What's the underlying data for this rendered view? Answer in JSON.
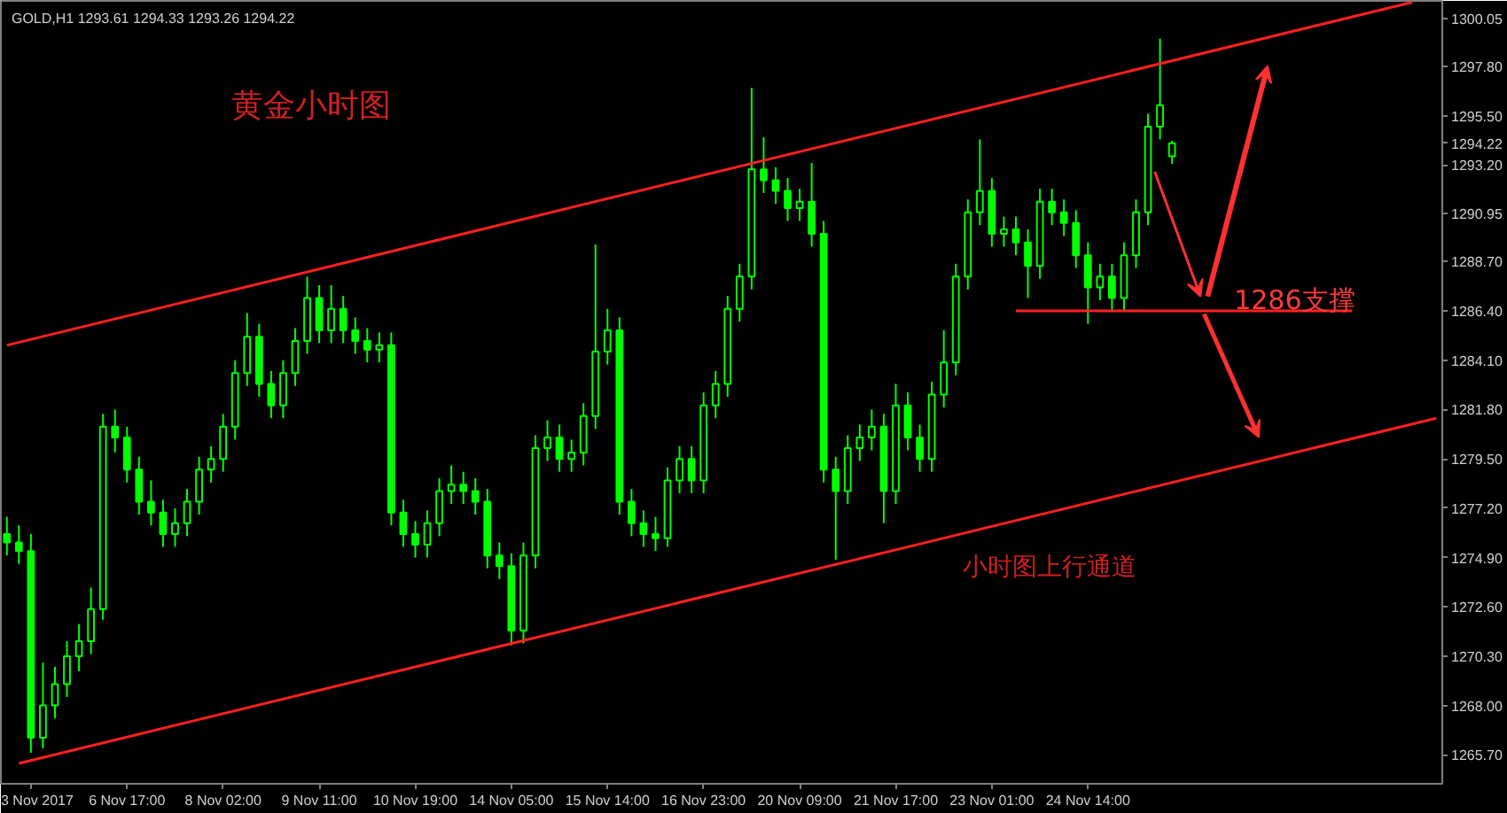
{
  "chart_data": {
    "type": "candlestick",
    "title": "GOLD,H1  1293.61 1294.33 1293.26 1294.22",
    "annotations": [
      "黄金小时图",
      "1286支撑",
      "小时图上行通道"
    ],
    "categories": [
      null,
      null,
      "3 Nov 2017",
      null,
      null,
      null,
      null,
      null,
      null,
      null,
      "6 Nov 17:00",
      null,
      null,
      null,
      null,
      null,
      null,
      null,
      "8 Nov 02:00",
      null,
      null,
      null,
      null,
      null,
      null,
      null,
      "9 Nov 11:00",
      null,
      null,
      null,
      null,
      null,
      null,
      null,
      "10 Nov 19:00",
      null,
      null,
      null,
      null,
      null,
      null,
      null,
      "14 Nov 05:00",
      null,
      null,
      null,
      null,
      null,
      null,
      null,
      "15 Nov 14:00",
      null,
      null,
      null,
      null,
      null,
      null,
      null,
      "16 Nov 23:00",
      null,
      null,
      null,
      null,
      null,
      null,
      null,
      "20 Nov 09:00",
      null,
      null,
      null,
      null,
      null,
      null,
      null,
      "21 Nov 17:00",
      null,
      null,
      null,
      null,
      null,
      null,
      null,
      "23 Nov 01:00",
      null,
      null,
      null,
      null,
      null,
      null,
      null,
      "24 Nov 14:00",
      null,
      null,
      null,
      null,
      null,
      null,
      null,
      null,
      null,
      null,
      null,
      null,
      null,
      null,
      null,
      null,
      null,
      null,
      null,
      null,
      null,
      null,
      null,
      null,
      null,
      null,
      null,
      null,
      null
    ],
    "ylim": [
      1264.35,
      1300.86
    ],
    "yticks": [
      {
        "value": 1265.7,
        "label": "1265.70"
      },
      {
        "value": 1268.0,
        "label": "1268.00"
      },
      {
        "value": 1270.3,
        "label": "1270.30"
      },
      {
        "value": 1272.6,
        "label": "1272.60"
      },
      {
        "value": 1274.9,
        "label": "1274.90"
      },
      {
        "value": 1277.2,
        "label": "1277.20"
      },
      {
        "value": 1279.5,
        "label": "1279.50"
      },
      {
        "value": 1281.8,
        "label": "1281.80"
      },
      {
        "value": 1284.1,
        "label": "1284.10"
      },
      {
        "value": 1286.4,
        "label": "1286.40"
      },
      {
        "value": 1288.7,
        "label": "1288.70"
      },
      {
        "value": 1290.95,
        "label": "1290.95"
      },
      {
        "value": 1293.2,
        "label": "1293.20"
      },
      1294.22,
      {
        "value": 1295.5,
        "label": "1295.50"
      },
      {
        "value": 1297.8,
        "label": "1297.80"
      },
      {
        "value": 1300.05,
        "label": "1300.05"
      }
    ],
    "series": [
      {
        "color": "#00ff00",
        "ohlc": [
          [
            1276.0,
            1276.8,
            1275.0,
            1275.6
          ],
          [
            1275.6,
            1276.4,
            1274.6,
            1275.2
          ],
          [
            1275.2,
            1276.0,
            1265.8,
            1266.5
          ],
          [
            1266.5,
            1270.0,
            1266.0,
            1268.0
          ],
          [
            1268.0,
            1269.8,
            1267.4,
            1269.0
          ],
          [
            1269.0,
            1271.0,
            1268.4,
            1270.3
          ],
          [
            1270.3,
            1271.8,
            1269.6,
            1271.0
          ],
          [
            1271.0,
            1273.5,
            1270.4,
            1272.5
          ],
          [
            1272.5,
            1281.6,
            1272.0,
            1281.0
          ],
          [
            1281.0,
            1281.8,
            1279.8,
            1280.5
          ],
          [
            1280.5,
            1281.0,
            1278.4,
            1279.0
          ],
          [
            1279.0,
            1279.6,
            1276.9,
            1277.5
          ],
          [
            1277.5,
            1278.5,
            1276.4,
            1277.0
          ],
          [
            1277.0,
            1277.6,
            1275.4,
            1276.0
          ],
          [
            1276.0,
            1277.2,
            1275.4,
            1276.5
          ],
          [
            1276.5,
            1278.1,
            1275.9,
            1277.5
          ],
          [
            1277.5,
            1279.6,
            1276.9,
            1279.0
          ],
          [
            1279.0,
            1280.1,
            1278.4,
            1279.5
          ],
          [
            1279.5,
            1281.6,
            1278.9,
            1281.0
          ],
          [
            1281.0,
            1284.1,
            1280.4,
            1283.5
          ],
          [
            1283.5,
            1286.3,
            1282.9,
            1285.2
          ],
          [
            1285.2,
            1285.8,
            1282.4,
            1283.0
          ],
          [
            1283.0,
            1283.6,
            1281.4,
            1282.0
          ],
          [
            1282.0,
            1284.1,
            1281.4,
            1283.5
          ],
          [
            1283.5,
            1285.6,
            1282.9,
            1285.0
          ],
          [
            1285.0,
            1288.0,
            1284.4,
            1287.0
          ],
          [
            1287.0,
            1287.6,
            1284.9,
            1285.5
          ],
          [
            1285.5,
            1287.6,
            1284.9,
            1286.5
          ],
          [
            1286.5,
            1287.1,
            1284.9,
            1285.5
          ],
          [
            1285.5,
            1286.1,
            1284.4,
            1285.0
          ],
          [
            1285.0,
            1285.6,
            1284.0,
            1284.6
          ],
          [
            1284.6,
            1285.4,
            1284.0,
            1284.8
          ],
          [
            1284.8,
            1285.4,
            1276.4,
            1277.0
          ],
          [
            1277.0,
            1277.6,
            1275.4,
            1276.0
          ],
          [
            1276.0,
            1276.6,
            1274.9,
            1275.5
          ],
          [
            1275.5,
            1277.1,
            1274.9,
            1276.5
          ],
          [
            1276.5,
            1278.6,
            1275.9,
            1278.0
          ],
          [
            1278.0,
            1279.2,
            1277.4,
            1278.3
          ],
          [
            1278.3,
            1278.9,
            1277.4,
            1278.0
          ],
          [
            1278.0,
            1278.6,
            1276.9,
            1277.5
          ],
          [
            1277.5,
            1278.1,
            1274.4,
            1275.0
          ],
          [
            1275.0,
            1275.6,
            1273.9,
            1274.5
          ],
          [
            1274.5,
            1275.1,
            1270.8,
            1271.5
          ],
          [
            1271.5,
            1275.6,
            1270.9,
            1275.0
          ],
          [
            1275.0,
            1280.6,
            1274.4,
            1280.0
          ],
          [
            1280.0,
            1281.3,
            1279.4,
            1280.5
          ],
          [
            1280.5,
            1281.1,
            1278.9,
            1279.5
          ],
          [
            1279.5,
            1280.4,
            1278.9,
            1279.8
          ],
          [
            1279.8,
            1282.1,
            1279.2,
            1281.5
          ],
          [
            1281.5,
            1289.5,
            1280.9,
            1284.5
          ],
          [
            1284.5,
            1286.5,
            1283.9,
            1285.5
          ],
          [
            1285.5,
            1286.1,
            1276.9,
            1277.5
          ],
          [
            1277.5,
            1278.1,
            1275.9,
            1276.5
          ],
          [
            1276.5,
            1277.1,
            1275.4,
            1276.0
          ],
          [
            1276.0,
            1276.8,
            1275.2,
            1275.8
          ],
          [
            1275.8,
            1279.1,
            1275.4,
            1278.5
          ],
          [
            1278.5,
            1280.1,
            1277.9,
            1279.5
          ],
          [
            1279.5,
            1280.1,
            1277.9,
            1278.5
          ],
          [
            1278.5,
            1282.6,
            1277.9,
            1282.0
          ],
          [
            1282.0,
            1283.6,
            1281.4,
            1283.0
          ],
          [
            1283.0,
            1287.1,
            1282.4,
            1286.5
          ],
          [
            1286.5,
            1288.6,
            1285.9,
            1288.0
          ],
          [
            1288.0,
            1296.8,
            1287.4,
            1293.0
          ],
          [
            1293.0,
            1294.5,
            1291.9,
            1292.5
          ],
          [
            1292.5,
            1293.1,
            1291.4,
            1292.0
          ],
          [
            1292.0,
            1292.6,
            1290.6,
            1291.2
          ],
          [
            1291.2,
            1292.1,
            1290.6,
            1291.5
          ],
          [
            1291.5,
            1293.3,
            1289.4,
            1290.0
          ],
          [
            1290.0,
            1290.6,
            1278.4,
            1279.0
          ],
          [
            1279.0,
            1279.6,
            1274.8,
            1278.0
          ],
          [
            1278.0,
            1280.6,
            1277.4,
            1280.0
          ],
          [
            1280.0,
            1281.1,
            1279.4,
            1280.5
          ],
          [
            1280.5,
            1281.8,
            1279.9,
            1281.0
          ],
          [
            1281.0,
            1281.6,
            1276.5,
            1278.0
          ],
          [
            1278.0,
            1283.0,
            1277.4,
            1282.0
          ],
          [
            1282.0,
            1282.6,
            1279.9,
            1280.5
          ],
          [
            1280.5,
            1281.1,
            1278.9,
            1279.5
          ],
          [
            1279.5,
            1283.1,
            1278.9,
            1282.5
          ],
          [
            1282.5,
            1285.5,
            1281.9,
            1284.0
          ],
          [
            1284.0,
            1288.6,
            1283.4,
            1288.0
          ],
          [
            1288.0,
            1291.6,
            1287.4,
            1291.0
          ],
          [
            1291.0,
            1294.4,
            1290.4,
            1292.0
          ],
          [
            1292.0,
            1292.6,
            1289.4,
            1290.0
          ],
          [
            1290.0,
            1290.8,
            1289.4,
            1290.2
          ],
          [
            1290.2,
            1290.8,
            1289.0,
            1289.6
          ],
          [
            1289.6,
            1290.2,
            1287.0,
            1288.5
          ],
          [
            1288.5,
            1292.1,
            1287.9,
            1291.5
          ],
          [
            1291.5,
            1292.1,
            1290.4,
            1291.0
          ],
          [
            1291.0,
            1291.6,
            1289.9,
            1290.5
          ],
          [
            1290.5,
            1291.1,
            1288.4,
            1289.0
          ],
          [
            1289.0,
            1289.6,
            1285.8,
            1287.5
          ],
          [
            1287.5,
            1288.6,
            1286.9,
            1288.0
          ],
          [
            1288.0,
            1288.6,
            1286.4,
            1287.0
          ],
          [
            1287.0,
            1289.6,
            1286.4,
            1289.0
          ],
          [
            1289.0,
            1291.6,
            1288.4,
            1291.0
          ],
          [
            1291.0,
            1295.6,
            1290.4,
            1295.0
          ],
          [
            1295.0,
            1299.1,
            1294.4,
            1296.0
          ],
          [
            1293.61,
            1294.33,
            1293.26,
            1294.22
          ],
          null,
          null,
          null,
          null,
          null,
          null,
          null,
          null,
          null,
          null,
          null,
          null,
          null,
          null,
          null,
          null,
          null,
          null,
          null,
          null,
          null,
          null
        ]
      },
      {
        "type": "line",
        "color": "#ff2020",
        "values": [
          1284.8,
          null,
          null,
          null,
          null,
          null,
          null,
          null,
          null,
          null,
          null,
          null,
          null,
          null,
          null,
          null,
          null,
          null,
          null,
          null,
          null,
          null,
          null,
          null,
          null,
          null,
          null,
          null,
          null,
          null,
          null,
          null,
          null,
          null,
          null,
          null,
          null,
          null,
          null,
          null,
          null,
          null,
          null,
          null,
          null,
          null,
          null,
          null,
          null,
          null,
          null,
          null,
          null,
          null,
          null,
          null,
          null,
          null,
          null,
          null,
          null,
          null,
          null,
          null,
          null,
          null,
          null,
          null,
          null,
          null,
          null,
          null,
          null,
          null,
          null,
          null,
          null,
          null,
          null,
          null,
          null,
          null,
          null,
          null,
          null,
          null,
          null,
          null,
          null,
          null,
          null,
          null,
          null,
          null,
          null,
          null,
          null,
          null,
          null,
          null,
          null,
          null,
          null,
          null,
          null,
          null,
          null,
          null,
          null,
          null,
          null,
          null,
          null,
          null,
          null,
          null,
          null,
          1300.8,
          null,
          null
        ]
      },
      {
        "type": "line",
        "color": "#ff2020",
        "values": [
          null,
          1265.3,
          null,
          null,
          null,
          null,
          null,
          null,
          null,
          null,
          null,
          null,
          null,
          null,
          null,
          null,
          null,
          null,
          null,
          null,
          null,
          null,
          null,
          null,
          null,
          null,
          null,
          null,
          null,
          null,
          null,
          null,
          null,
          null,
          null,
          null,
          null,
          null,
          null,
          null,
          null,
          null,
          null,
          null,
          null,
          null,
          null,
          null,
          null,
          null,
          null,
          null,
          null,
          null,
          null,
          null,
          null,
          null,
          null,
          null,
          null,
          null,
          null,
          null,
          null,
          null,
          null,
          null,
          null,
          null,
          null,
          null,
          null,
          null,
          null,
          null,
          null,
          null,
          null,
          null,
          null,
          null,
          null,
          null,
          null,
          null,
          null,
          null,
          null,
          null,
          null,
          null,
          null,
          null,
          null,
          null,
          null,
          null,
          null,
          null,
          null,
          null,
          null,
          null,
          null,
          null,
          null,
          null,
          null,
          null,
          null,
          null,
          null,
          null,
          null,
          null,
          null,
          null,
          null,
          1281.4
        ]
      },
      {
        "type": "line",
        "color": "#ff2020",
        "values": [
          null,
          null,
          null,
          null,
          null,
          null,
          null,
          null,
          null,
          null,
          null,
          null,
          null,
          null,
          null,
          null,
          null,
          null,
          null,
          null,
          null,
          null,
          null,
          null,
          null,
          null,
          null,
          null,
          null,
          null,
          null,
          null,
          null,
          null,
          null,
          null,
          null,
          null,
          null,
          null,
          null,
          null,
          null,
          null,
          null,
          null,
          null,
          null,
          null,
          null,
          null,
          null,
          null,
          null,
          null,
          null,
          null,
          null,
          null,
          null,
          null,
          null,
          null,
          null,
          null,
          null,
          null,
          null,
          null,
          null,
          null,
          null,
          null,
          null,
          null,
          null,
          null,
          null,
          null,
          null,
          null,
          null,
          null,
          null,
          1286.4,
          null,
          null,
          null,
          null,
          null,
          null,
          null,
          null,
          null,
          null,
          null,
          null,
          null,
          null,
          null,
          null,
          null,
          null,
          null,
          null,
          null,
          null,
          null,
          null,
          null,
          null,
          null,
          1286.4,
          null,
          null,
          null,
          null,
          null,
          null,
          null
        ]
      }
    ]
  }
}
